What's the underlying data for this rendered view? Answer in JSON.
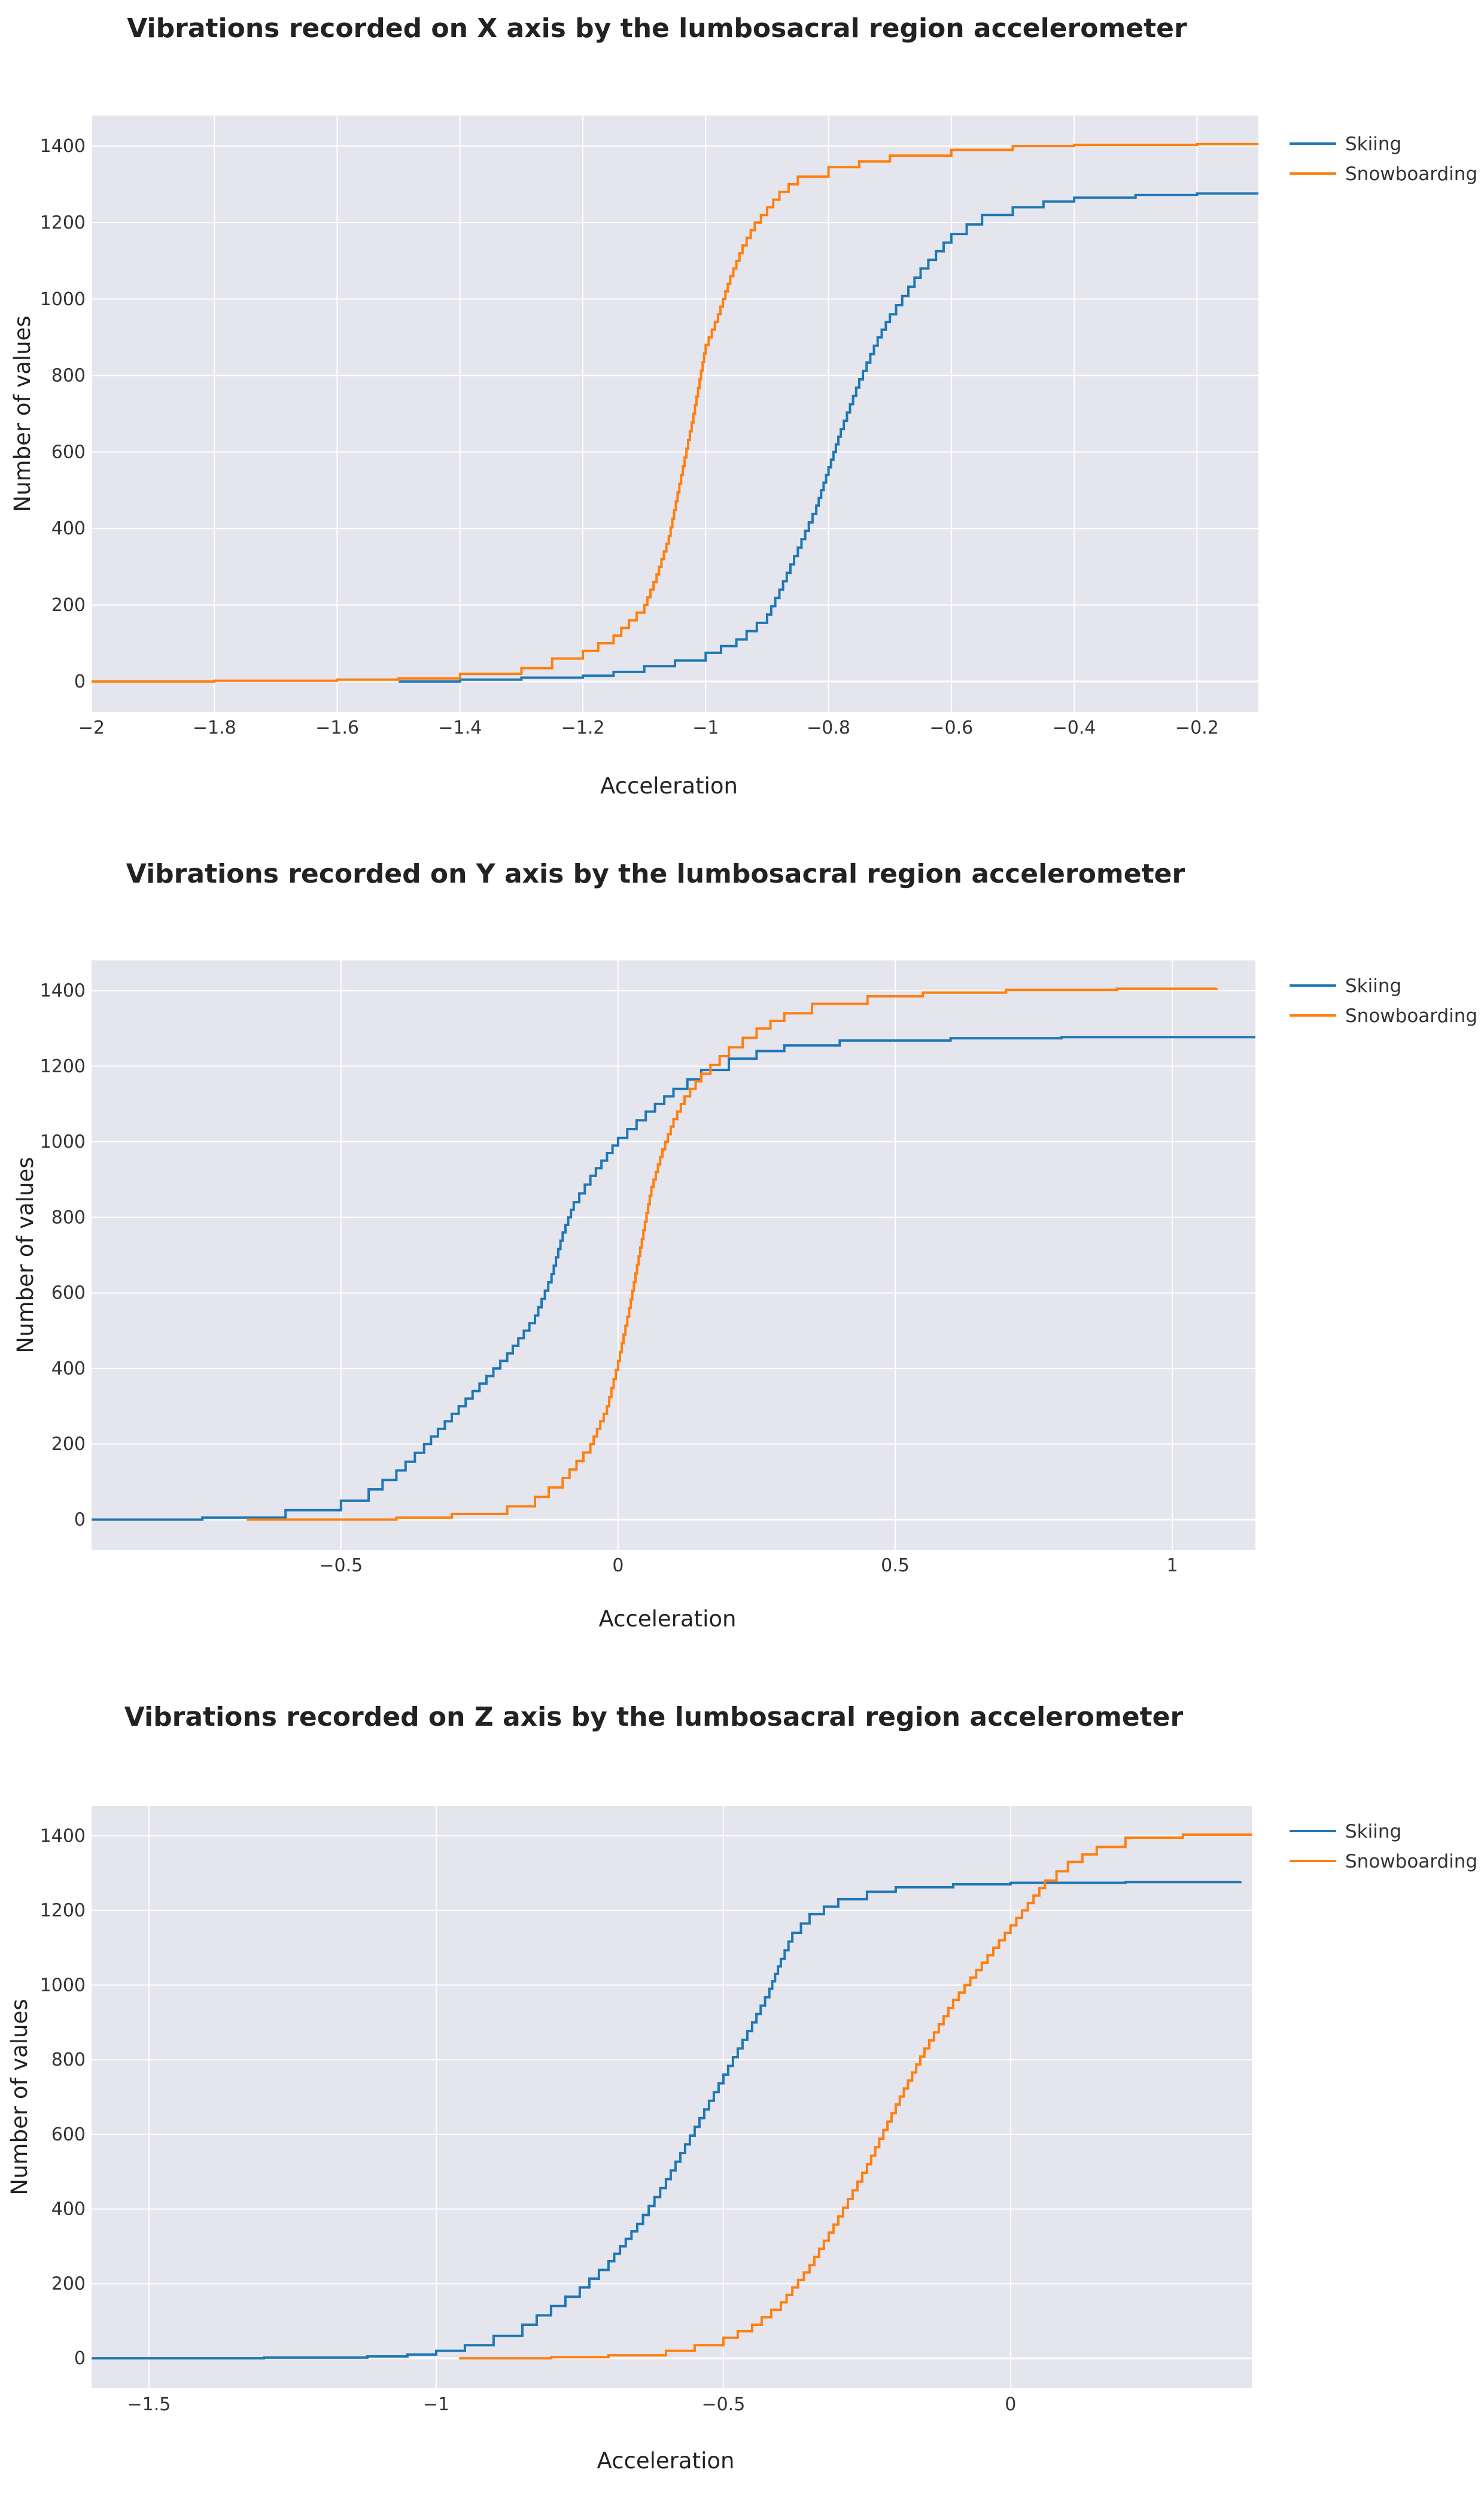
{
  "chart_data": [
    {
      "type": "line",
      "title": "Vibrations recorded on X axis by the lumbosacral region accelerometer",
      "xlabel": "Acceleration",
      "ylabel": "Number of values",
      "xlim": [
        -2,
        -0.1
      ],
      "ylim": [
        -80,
        1480
      ],
      "x_ticks": [
        -2,
        -1.8,
        -1.6,
        -1.4,
        -1.2,
        -1,
        -0.8,
        -0.6,
        -0.4,
        -0.2
      ],
      "x_tick_labels": [
        "−2",
        "−1.8",
        "−1.6",
        "−1.4",
        "−1.2",
        "−1",
        "−0.8",
        "−0.6",
        "−0.4",
        "−0.2"
      ],
      "y_ticks": [
        0,
        200,
        400,
        600,
        800,
        1000,
        1200,
        1400
      ],
      "y_tick_labels": [
        "0",
        "200",
        "400",
        "600",
        "800",
        "1000",
        "1200",
        "1400"
      ],
      "grid": true,
      "legend_position": "top-right",
      "series": [
        {
          "name": "Skiing",
          "color": "#1f77b4",
          "x": [
            -1.5,
            -1.4,
            -1.3,
            -1.2,
            -1.15,
            -1.1,
            -1.05,
            -1.0,
            -0.95,
            -0.9,
            -0.88,
            -0.85,
            -0.82,
            -0.8,
            -0.78,
            -0.75,
            -0.72,
            -0.7,
            -0.65,
            -0.6,
            -0.55,
            -0.5,
            -0.45,
            -0.4,
            -0.3,
            -0.2,
            -0.1
          ],
          "y": [
            0,
            5,
            10,
            15,
            25,
            40,
            55,
            75,
            110,
            175,
            240,
            350,
            460,
            560,
            660,
            790,
            900,
            960,
            1080,
            1170,
            1220,
            1240,
            1255,
            1265,
            1272,
            1276,
            1278
          ]
        },
        {
          "name": "Snowboarding",
          "color": "#ff7f0e",
          "x": [
            -2.0,
            -1.8,
            -1.6,
            -1.5,
            -1.4,
            -1.3,
            -1.25,
            -1.2,
            -1.15,
            -1.1,
            -1.08,
            -1.06,
            -1.04,
            -1.02,
            -1.0,
            -0.98,
            -0.96,
            -0.94,
            -0.92,
            -0.9,
            -0.88,
            -0.85,
            -0.8,
            -0.75,
            -0.7,
            -0.6,
            -0.5,
            -0.4,
            -0.2,
            -0.1
          ],
          "y": [
            0,
            2,
            5,
            8,
            20,
            35,
            60,
            80,
            120,
            200,
            280,
            380,
            540,
            700,
            880,
            960,
            1060,
            1140,
            1200,
            1240,
            1280,
            1320,
            1345,
            1360,
            1375,
            1390,
            1400,
            1403,
            1405,
            1406
          ]
        }
      ]
    },
    {
      "type": "line",
      "title": "Vibrations recorded on Y axis by the lumbosacral region accelerometer",
      "xlabel": "Acceleration",
      "ylabel": "Number of values",
      "xlim": [
        -0.95,
        1.15
      ],
      "ylim": [
        -80,
        1480
      ],
      "x_ticks": [
        -0.5,
        0,
        0.5,
        1
      ],
      "x_tick_labels": [
        "−0.5",
        "0",
        "0.5",
        "1"
      ],
      "y_ticks": [
        0,
        200,
        400,
        600,
        800,
        1000,
        1200,
        1400
      ],
      "y_tick_labels": [
        "0",
        "200",
        "400",
        "600",
        "800",
        "1000",
        "1200",
        "1400"
      ],
      "grid": true,
      "legend_position": "top-right",
      "series": [
        {
          "name": "Skiing",
          "color": "#1f77b4",
          "x": [
            -0.95,
            -0.75,
            -0.6,
            -0.5,
            -0.45,
            -0.4,
            -0.35,
            -0.3,
            -0.25,
            -0.2,
            -0.15,
            -0.12,
            -0.1,
            -0.08,
            -0.05,
            -0.02,
            0.0,
            0.05,
            0.1,
            0.15,
            0.2,
            0.25,
            0.3,
            0.4,
            0.6,
            0.8,
            1.15
          ],
          "y": [
            0,
            5,
            25,
            50,
            80,
            130,
            200,
            280,
            360,
            440,
            540,
            650,
            760,
            840,
            910,
            970,
            1010,
            1080,
            1140,
            1190,
            1220,
            1240,
            1255,
            1268,
            1274,
            1277,
            1278
          ]
        },
        {
          "name": "Snowboarding",
          "color": "#ff7f0e",
          "x": [
            -0.67,
            -0.4,
            -0.3,
            -0.2,
            -0.15,
            -0.1,
            -0.05,
            -0.02,
            0.0,
            0.02,
            0.04,
            0.06,
            0.08,
            0.1,
            0.12,
            0.15,
            0.2,
            0.25,
            0.3,
            0.35,
            0.45,
            0.55,
            0.7,
            0.9,
            1.08
          ],
          "y": [
            0,
            5,
            15,
            35,
            60,
            110,
            200,
            300,
            420,
            560,
            720,
            880,
            980,
            1060,
            1120,
            1180,
            1250,
            1300,
            1340,
            1365,
            1385,
            1395,
            1402,
            1405,
            1406
          ]
        }
      ]
    },
    {
      "type": "line",
      "title": "Vibrations recorded on Z axis by the lumbosacral region accelerometer",
      "xlabel": "Acceleration",
      "ylabel": "Number of values",
      "xlim": [
        -1.6,
        0.42
      ],
      "ylim": [
        -80,
        1480
      ],
      "x_ticks": [
        -1.5,
        -1,
        -0.5,
        0
      ],
      "x_tick_labels": [
        "−1.5",
        "−1",
        "−0.5",
        "0"
      ],
      "y_ticks": [
        0,
        200,
        400,
        600,
        800,
        1000,
        1200,
        1400
      ],
      "y_tick_labels": [
        "0",
        "200",
        "400",
        "600",
        "800",
        "1000",
        "1200",
        "1400"
      ],
      "grid": true,
      "legend_position": "top-right",
      "series": [
        {
          "name": "Skiing",
          "color": "#1f77b4",
          "x": [
            -1.6,
            -1.3,
            -1.12,
            -1.05,
            -1.0,
            -0.95,
            -0.9,
            -0.85,
            -0.8,
            -0.75,
            -0.7,
            -0.65,
            -0.6,
            -0.55,
            -0.5,
            -0.45,
            -0.42,
            -0.4,
            -0.38,
            -0.35,
            -0.3,
            -0.25,
            -0.2,
            -0.1,
            0.0,
            0.2,
            0.4
          ],
          "y": [
            0,
            2,
            5,
            10,
            20,
            35,
            60,
            90,
            140,
            190,
            260,
            360,
            480,
            620,
            760,
            900,
            990,
            1070,
            1140,
            1190,
            1230,
            1250,
            1262,
            1270,
            1274,
            1276,
            1278
          ]
        },
        {
          "name": "Snowboarding",
          "color": "#ff7f0e",
          "x": [
            -0.96,
            -0.8,
            -0.7,
            -0.6,
            -0.55,
            -0.5,
            -0.45,
            -0.4,
            -0.35,
            -0.3,
            -0.25,
            -0.2,
            -0.15,
            -0.1,
            -0.05,
            0.0,
            0.03,
            0.06,
            0.1,
            0.15,
            0.2,
            0.3,
            0.42
          ],
          "y": [
            0,
            3,
            8,
            20,
            35,
            55,
            90,
            150,
            250,
            380,
            520,
            680,
            830,
            960,
            1060,
            1160,
            1220,
            1280,
            1330,
            1370,
            1395,
            1403,
            1406
          ]
        }
      ]
    }
  ]
}
